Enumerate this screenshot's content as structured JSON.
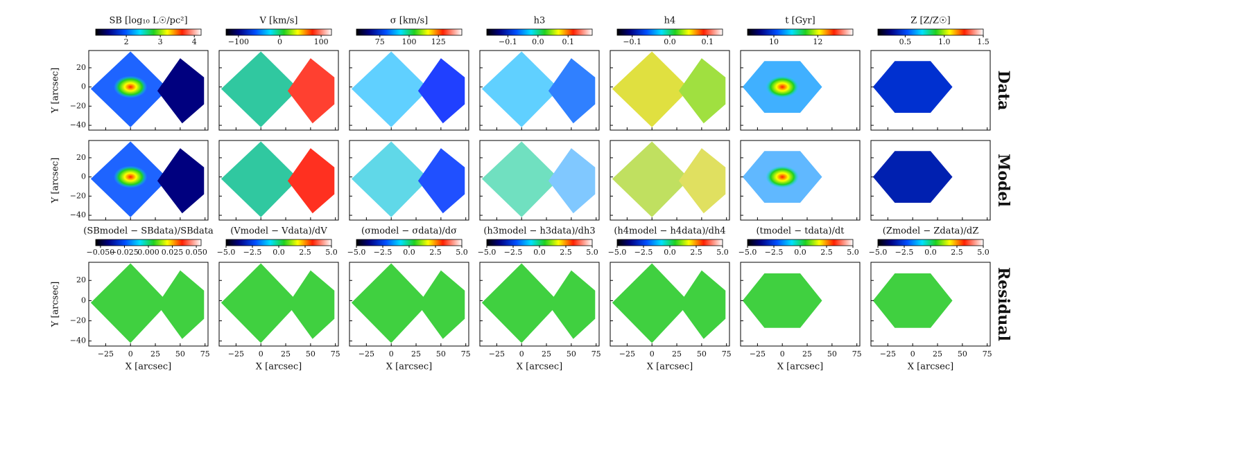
{
  "chart_data": {
    "type": "map-grid",
    "rows": [
      "Data",
      "Model",
      "Residual"
    ],
    "xlabel": "X [arcsec]",
    "ylabel": "Y [arcsec]",
    "xlim": [
      -42,
      78
    ],
    "xticks": [
      {
        "value": -25,
        "label": "−25"
      },
      0,
      25,
      50,
      75
    ],
    "ylim": [
      -45,
      38
    ],
    "yticks": [
      {
        "value": -40,
        "label": "−40"
      },
      {
        "value": -20,
        "label": "−20"
      },
      0,
      20
    ],
    "columns": [
      {
        "label": "SB [log₁₀ L☉/pc²]",
        "clim": [
          1.1,
          4.2
        ],
        "cticks": [
          2,
          3,
          4
        ],
        "residual_label": "(SBmodel − SBdata)/SBdata",
        "residual_clim": [
          -0.055,
          0.055
        ],
        "residual_cticks": [
          {
            "value": -0.05,
            "label": "−0.050"
          },
          {
            "value": -0.025,
            "label": "−0.025"
          },
          {
            "value": 0,
            "label": "0.000"
          },
          {
            "value": 0.025,
            "label": "0.025"
          },
          {
            "value": 0.05,
            "label": "0.050"
          }
        ]
      },
      {
        "label": "V [km/s]",
        "clim": [
          -130,
          125
        ],
        "cticks": [
          {
            "value": -100,
            "label": "−100"
          },
          0,
          100
        ],
        "residual_label": "(Vmodel − Vdata)/dV",
        "residual_clim": [
          -5,
          5
        ],
        "residual_cticks": [
          {
            "value": -5,
            "label": "−5.0"
          },
          {
            "value": -2.5,
            "label": "−2.5"
          },
          {
            "value": 0,
            "label": "0.0"
          },
          {
            "value": 2.5,
            "label": "2.5"
          },
          {
            "value": 5,
            "label": "5.0"
          }
        ]
      },
      {
        "label": "σ [km/s]",
        "clim": [
          55,
          145
        ],
        "cticks": [
          75,
          100,
          125
        ],
        "residual_label": "(σmodel − σdata)/dσ",
        "residual_clim": [
          -5,
          5
        ],
        "residual_cticks": [
          {
            "value": -5,
            "label": "−5.0"
          },
          {
            "value": -2.5,
            "label": "−2.5"
          },
          {
            "value": 0,
            "label": "0.0"
          },
          {
            "value": 2.5,
            "label": "2.5"
          },
          {
            "value": 5,
            "label": "5.0"
          }
        ]
      },
      {
        "label": "h3",
        "clim": [
          -0.17,
          0.18
        ],
        "cticks": [
          {
            "value": -0.1,
            "label": "−0.1"
          },
          {
            "value": 0,
            "label": "0.0"
          },
          0.1
        ],
        "residual_label": "(h3model − h3data)/dh3",
        "residual_clim": [
          -5,
          5
        ],
        "residual_cticks": [
          {
            "value": -5,
            "label": "−5.0"
          },
          {
            "value": -2.5,
            "label": "−2.5"
          },
          {
            "value": 0,
            "label": "0.0"
          },
          {
            "value": 2.5,
            "label": "2.5"
          },
          {
            "value": 5,
            "label": "5.0"
          }
        ]
      },
      {
        "label": "h4",
        "clim": [
          -0.14,
          0.14
        ],
        "cticks": [
          {
            "value": -0.1,
            "label": "−0.1"
          },
          {
            "value": 0,
            "label": "0.0"
          },
          0.1
        ],
        "residual_label": "(h4model − h4data)/dh4",
        "residual_clim": [
          -5,
          5
        ],
        "residual_cticks": [
          {
            "value": -5,
            "label": "−5.0"
          },
          {
            "value": -2.5,
            "label": "−2.5"
          },
          {
            "value": 0,
            "label": "0.0"
          },
          {
            "value": 2.5,
            "label": "2.5"
          },
          {
            "value": 5,
            "label": "5.0"
          }
        ]
      },
      {
        "label": "t [Gyr]",
        "clim": [
          8.8,
          13.6
        ],
        "cticks": [
          10,
          12
        ],
        "residual_label": "(tmodel − tdata)/dt",
        "residual_clim": [
          -5,
          5
        ],
        "residual_cticks": [
          {
            "value": -5,
            "label": "−5.0"
          },
          {
            "value": -2.5,
            "label": "−2.5"
          },
          {
            "value": 0,
            "label": "0.0"
          },
          {
            "value": 2.5,
            "label": "2.5"
          },
          {
            "value": 5,
            "label": "5.0"
          }
        ]
      },
      {
        "label": "Z [Z/Z☉]",
        "clim": [
          0.15,
          1.5
        ],
        "cticks": [
          0.5,
          {
            "value": 1,
            "label": "1.0"
          },
          1.5
        ],
        "residual_label": "(Zmodel − Zdata)/dZ",
        "residual_clim": [
          -5,
          5
        ],
        "residual_cticks": [
          {
            "value": -5,
            "label": "−5.0"
          },
          {
            "value": -2.5,
            "label": "−2.5"
          },
          {
            "value": 0,
            "label": "0.0"
          },
          {
            "value": 2.5,
            "label": "2.5"
          },
          {
            "value": 5,
            "label": "5.0"
          }
        ]
      }
    ]
  }
}
